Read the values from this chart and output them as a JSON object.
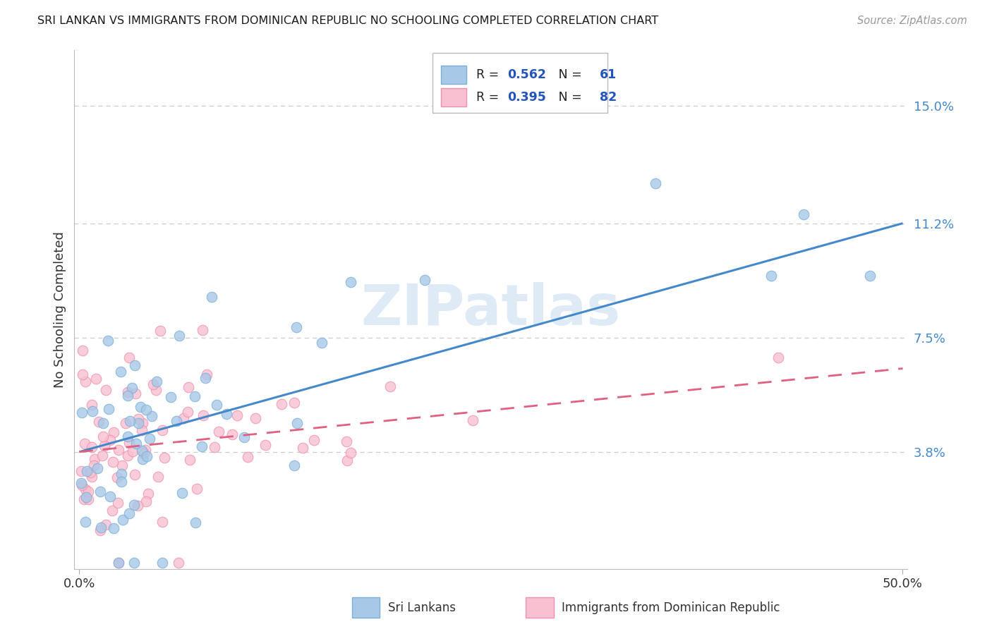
{
  "title": "SRI LANKAN VS IMMIGRANTS FROM DOMINICAN REPUBLIC NO SCHOOLING COMPLETED CORRELATION CHART",
  "source": "Source: ZipAtlas.com",
  "ylabel": "No Schooling Completed",
  "ytick_values": [
    0.038,
    0.075,
    0.112,
    0.15
  ],
  "ytick_labels": [
    "3.8%",
    "7.5%",
    "11.2%",
    "15.0%"
  ],
  "xlim": [
    0.0,
    0.5
  ],
  "ylim": [
    0.0,
    0.168
  ],
  "blue_color_fill": "#a8c8e8",
  "blue_color_edge": "#7ab0d8",
  "pink_color_fill": "#f8c0d0",
  "pink_color_edge": "#f090b0",
  "trend_blue": "#4488cc",
  "trend_pink": "#e06080",
  "text_color": "#333333",
  "tick_color": "#4488cc",
  "grid_color": "#cccccc",
  "watermark_color": "#c8dff0",
  "blue_trend_start_y": 0.038,
  "blue_trend_end_y": 0.112,
  "pink_trend_start_y": 0.038,
  "pink_trend_end_y": 0.065,
  "R_blue": "0.562",
  "N_blue": "61",
  "R_pink": "0.395",
  "N_pink": "82"
}
